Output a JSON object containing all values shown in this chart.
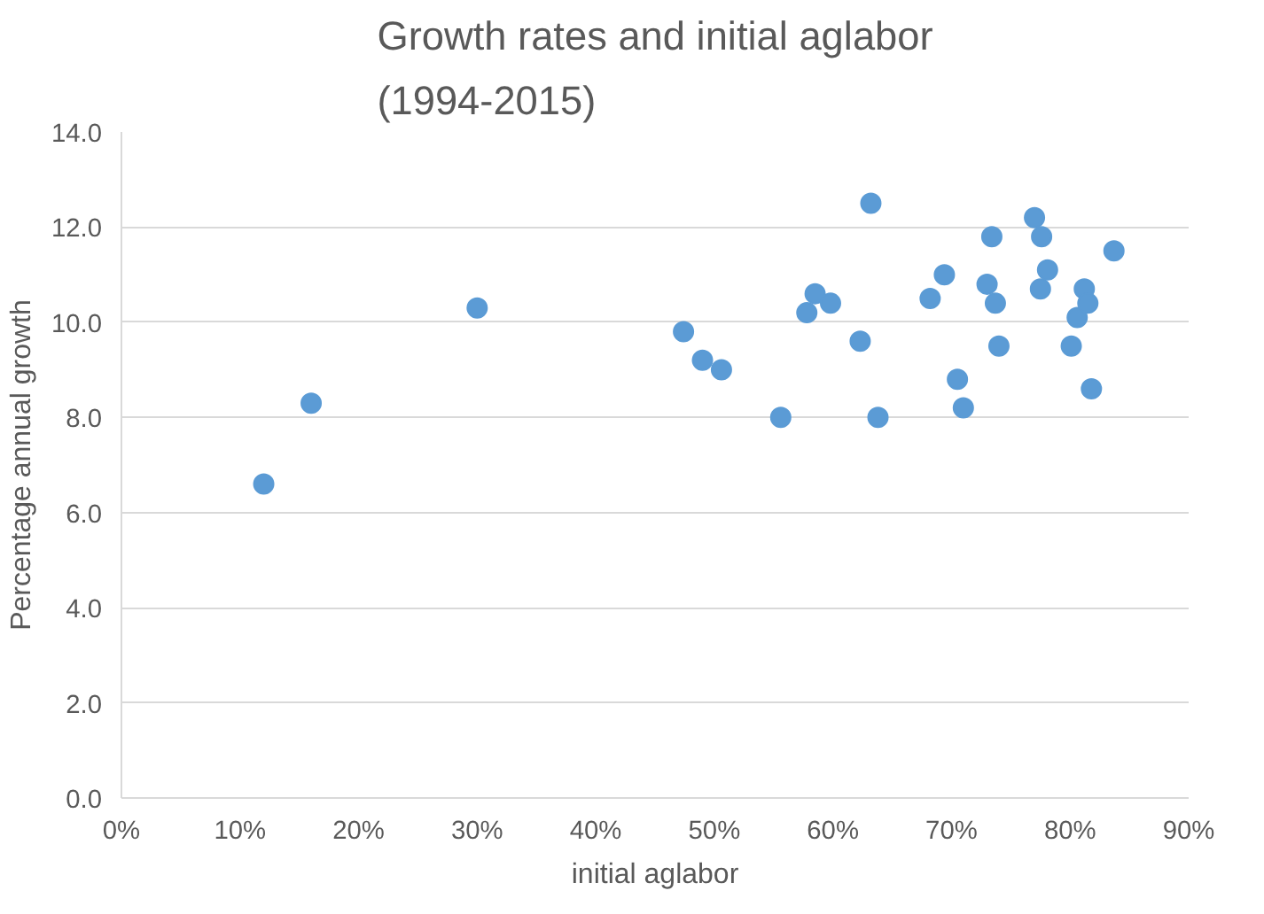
{
  "chart_data": {
    "type": "scatter",
    "title": "Growth rates and initial aglabor\n(1994-2015)",
    "xlabel": "initial aglabor",
    "ylabel": "Percentage annual growth",
    "x": [
      12,
      16,
      30,
      47.4,
      49,
      50.6,
      55.6,
      57.8,
      58.5,
      59.8,
      62.3,
      63.2,
      63.8,
      68.2,
      69.4,
      70.5,
      71,
      73,
      73.4,
      73.7,
      74,
      77,
      77.6,
      77.5,
      78.1,
      80.1,
      80.6,
      81.2,
      81.5,
      81.8,
      83.7
    ],
    "series": [
      {
        "color": "#5b9bd5",
        "values": [
          6.6,
          8.3,
          10.3,
          9.8,
          9.2,
          9.0,
          8.0,
          10.2,
          10.6,
          10.4,
          9.6,
          12.5,
          8.0,
          10.5,
          11.0,
          8.8,
          8.2,
          10.8,
          11.8,
          10.4,
          9.5,
          12.2,
          11.8,
          10.7,
          11.1,
          9.5,
          10.1,
          10.7,
          10.4,
          8.6,
          11.5
        ]
      }
    ],
    "xlim": [
      0,
      90
    ],
    "xticks": [
      {
        "value": 0,
        "label": "0%"
      },
      {
        "value": 10,
        "label": "10%"
      },
      {
        "value": 20,
        "label": "20%"
      },
      {
        "value": 30,
        "label": "30%"
      },
      {
        "value": 40,
        "label": "40%"
      },
      {
        "value": 50,
        "label": "50%"
      },
      {
        "value": 60,
        "label": "60%"
      },
      {
        "value": 70,
        "label": "70%"
      },
      {
        "value": 80,
        "label": "80%"
      },
      {
        "value": 90,
        "label": "90%"
      }
    ],
    "ylim": [
      0,
      14
    ],
    "yticks": [
      {
        "value": 0,
        "label": "0.0"
      },
      {
        "value": 2,
        "label": "2.0"
      },
      {
        "value": 4,
        "label": "4.0"
      },
      {
        "value": 6,
        "label": "6.0"
      },
      {
        "value": 8,
        "label": "8.0"
      },
      {
        "value": 10,
        "label": "10.0"
      },
      {
        "value": 12,
        "label": "12.0"
      },
      {
        "value": 14,
        "label": "14.0"
      }
    ],
    "grid": "y",
    "marker": "circle"
  }
}
